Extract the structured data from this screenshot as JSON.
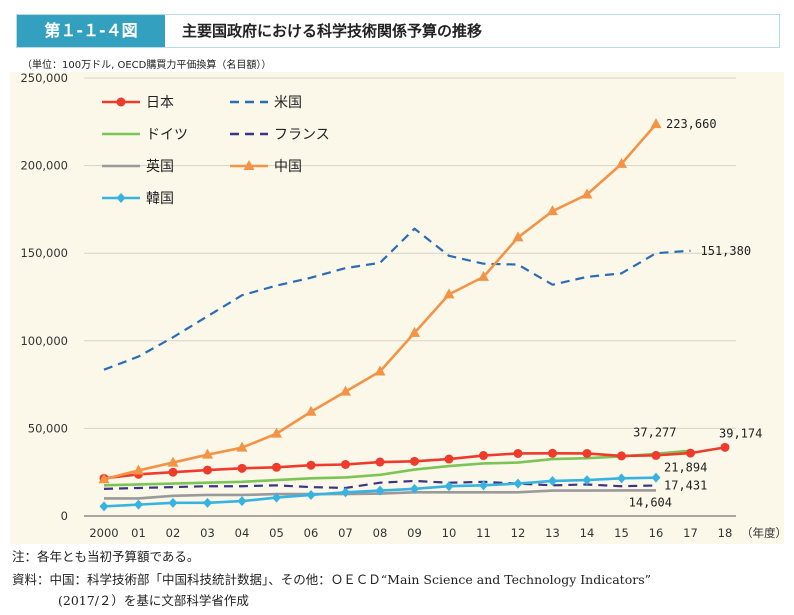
{
  "header": {
    "figure_number": "第１-１-４図",
    "title": "主要国政府における科学技術関係予算の推移"
  },
  "unit_note": "（単位：100万ドル, OECD購買力平価換算（名目額））",
  "footer": {
    "note": "注：各年とも当初予算額である。",
    "source_line1": "資料：中国：科学技術部「中国科技統計数据」、その他：ＯＥＣＤ“Main Science and Technology Indicators”",
    "source_line2": "(2017/２）を基に文部科学省作成"
  },
  "chart_data": {
    "type": "line",
    "x_categories": [
      "2000",
      "01",
      "02",
      "03",
      "04",
      "05",
      "06",
      "07",
      "08",
      "09",
      "10",
      "11",
      "12",
      "13",
      "14",
      "15",
      "16",
      "17",
      "18"
    ],
    "x_unit_label": "（年度）",
    "y_ticks": [
      "0",
      "50,000",
      "100,000",
      "150,000",
      "200,000",
      "250,000"
    ],
    "ylim": [
      0,
      250000
    ],
    "grid": "horizontal",
    "legend_position": "top-left",
    "series": [
      {
        "name": "日本",
        "color": "#ee3b2c",
        "style": "solid",
        "marker": "circle",
        "values": [
          21500,
          23800,
          25000,
          26200,
          27200,
          27800,
          29000,
          29400,
          30800,
          31200,
          32500,
          34500,
          35700,
          35800,
          35700,
          34300,
          34600,
          35900,
          39174
        ]
      },
      {
        "name": "米国",
        "color": "#2b6cb5",
        "style": "dashed",
        "marker": "none",
        "values": [
          83500,
          91000,
          102000,
          114000,
          126000,
          131500,
          136000,
          141500,
          144500,
          164000,
          148500,
          144000,
          143500,
          132000,
          136500,
          138500,
          150000,
          151380,
          null
        ]
      },
      {
        "name": "ドイツ",
        "color": "#7dc457",
        "style": "solid",
        "marker": "none",
        "values": [
          17500,
          18000,
          18500,
          19000,
          19500,
          20500,
          21500,
          22000,
          23500,
          26500,
          28500,
          30000,
          30500,
          32500,
          33000,
          34000,
          35500,
          37277,
          null
        ]
      },
      {
        "name": "フランス",
        "color": "#3a3589",
        "style": "dashed",
        "marker": "none",
        "values": [
          15500,
          16000,
          16500,
          17000,
          17000,
          17500,
          16500,
          16000,
          19000,
          20000,
          19000,
          19500,
          18500,
          17500,
          18000,
          17000,
          17431,
          null,
          null
        ]
      },
      {
        "name": "英国",
        "color": "#9a9a9a",
        "style": "solid",
        "marker": "none",
        "values": [
          10000,
          10000,
          11500,
          12000,
          12000,
          12500,
          12500,
          12500,
          12800,
          13500,
          13500,
          13500,
          13500,
          14500,
          14500,
          14604,
          14604,
          null,
          null
        ]
      },
      {
        "name": "中国",
        "color": "#f39346",
        "style": "solid",
        "marker": "triangle",
        "values": [
          21000,
          26000,
          30500,
          35000,
          39000,
          47000,
          59500,
          71000,
          82500,
          104500,
          126500,
          136500,
          159000,
          174000,
          183500,
          201000,
          223660,
          null,
          null
        ]
      },
      {
        "name": "韓国",
        "color": "#38b3e0",
        "style": "solid",
        "marker": "diamond",
        "values": [
          5500,
          6500,
          7500,
          7500,
          8500,
          10500,
          12000,
          13500,
          14500,
          15500,
          17000,
          17500,
          18500,
          20000,
          20500,
          21500,
          21894,
          null,
          null
        ]
      }
    ],
    "data_labels": [
      {
        "text": "223,660",
        "series": "中国",
        "x": "16",
        "y": 223660
      },
      {
        "text": "151,380",
        "series": "米国",
        "x": "17",
        "y": 151380
      },
      {
        "text": "39,174",
        "series": "日本",
        "x": "18",
        "y": 39174
      },
      {
        "text": "37,277",
        "series": "ドイツ",
        "x": "17",
        "y": 37277
      },
      {
        "text": "21,894",
        "series": "韓国",
        "x": "16",
        "y": 21894
      },
      {
        "text": "17,431",
        "series": "フランス",
        "x": "16",
        "y": 17431
      },
      {
        "text": "14,604",
        "series": "英国",
        "x": "16",
        "y": 14604
      }
    ]
  }
}
